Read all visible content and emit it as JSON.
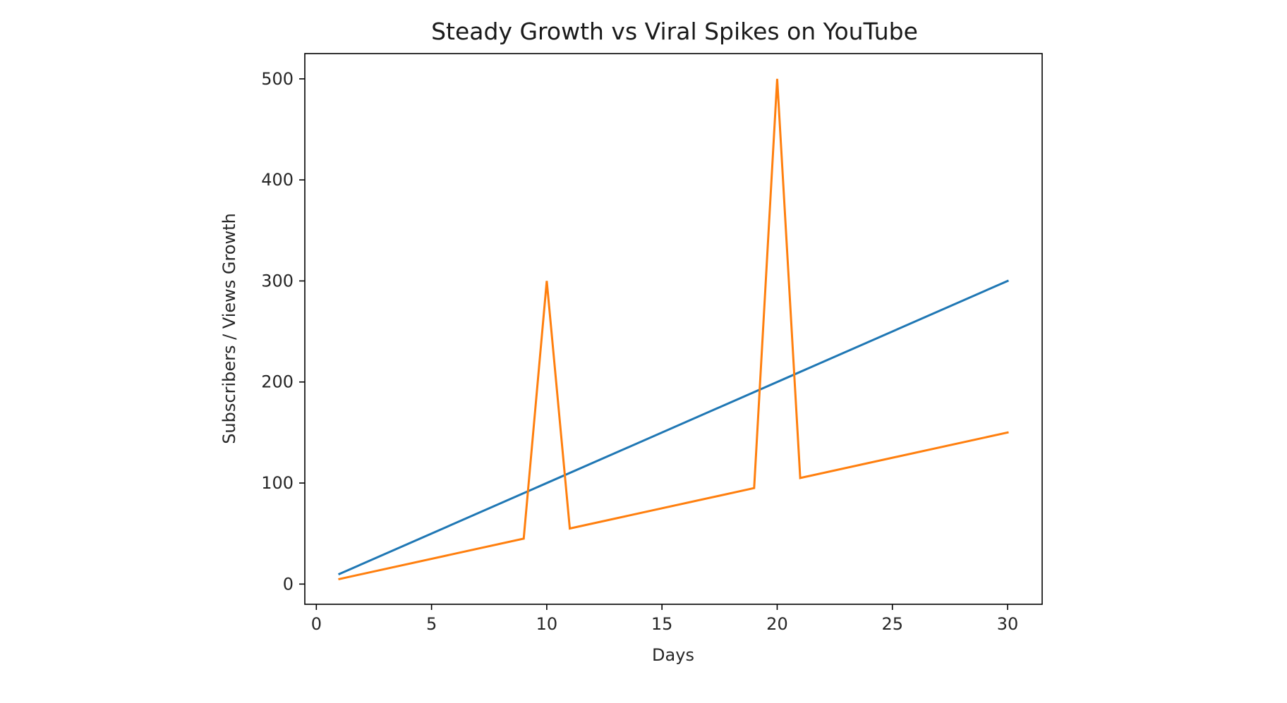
{
  "chart_data": {
    "type": "line",
    "title": "Steady Growth vs Viral Spikes on YouTube",
    "xlabel": "Days",
    "ylabel": "Subscribers / Views Growth",
    "xlim": [
      -0.5,
      31.5
    ],
    "ylim": [
      -20,
      525
    ],
    "xticks": [
      0,
      5,
      10,
      15,
      20,
      25,
      30
    ],
    "yticks": [
      0,
      100,
      200,
      300,
      400,
      500
    ],
    "grid": false,
    "series": [
      {
        "color": "#1f77b4",
        "points": [
          [
            1,
            10
          ],
          [
            30,
            300
          ]
        ]
      },
      {
        "color": "#ff7f0e",
        "points": [
          [
            1,
            5
          ],
          [
            9,
            45
          ],
          [
            10,
            300
          ],
          [
            11,
            55
          ],
          [
            19,
            95
          ],
          [
            20,
            500
          ],
          [
            21,
            105
          ],
          [
            30,
            150
          ]
        ]
      }
    ]
  }
}
